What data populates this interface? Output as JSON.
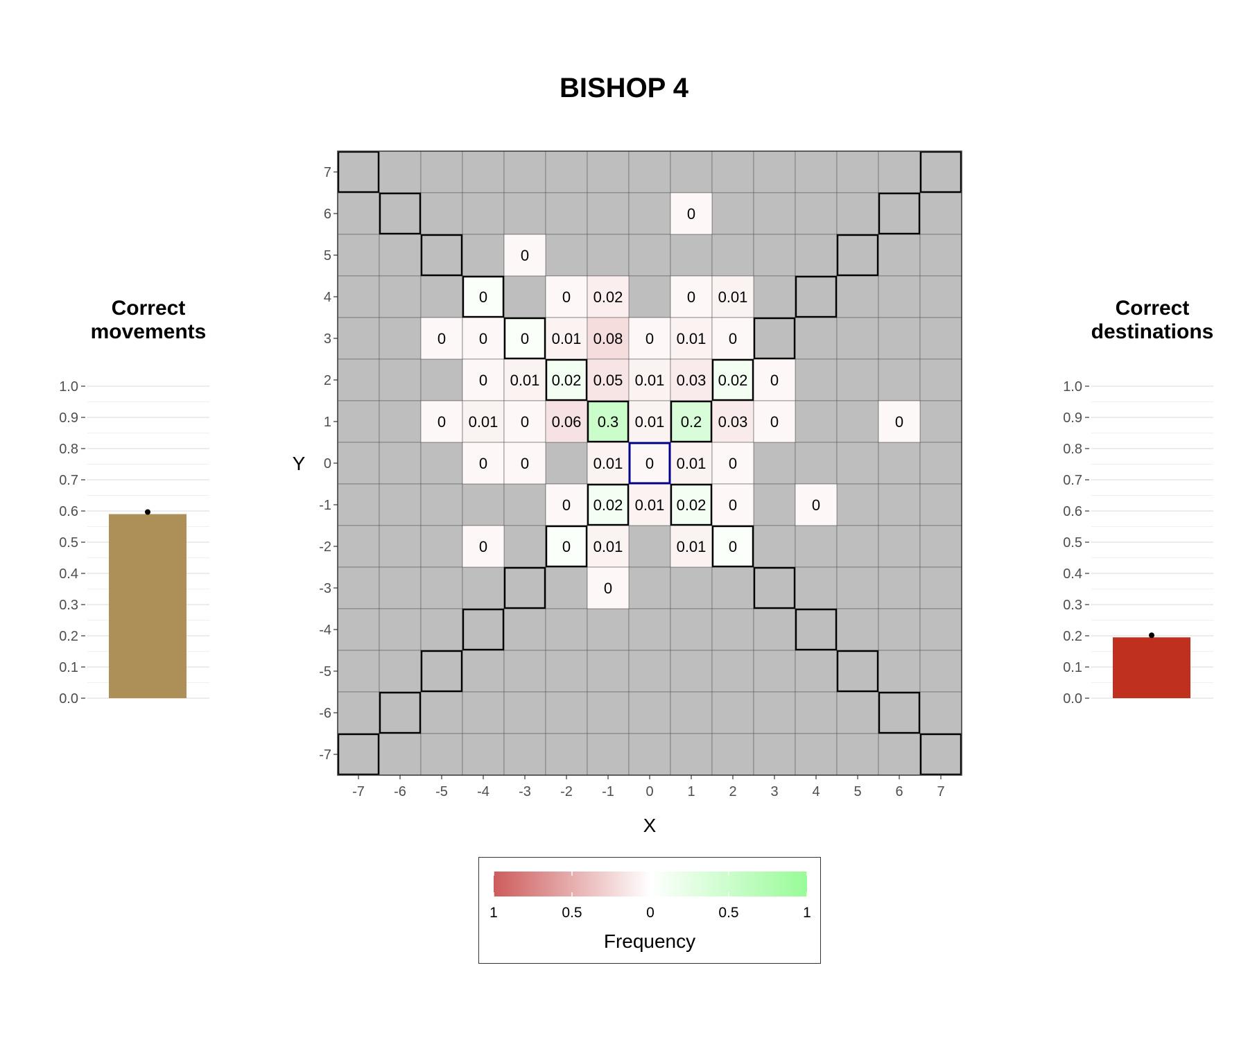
{
  "chart_data": [
    {
      "type": "heatmap",
      "title": "BISHOP 4",
      "xlabel": "X",
      "ylabel": "Y",
      "x_ticks": [
        "-7",
        "-6",
        "-5",
        "-4",
        "-3",
        "-2",
        "-1",
        "0",
        "1",
        "2",
        "3",
        "4",
        "5",
        "6",
        "7"
      ],
      "y_ticks": [
        "7",
        "6",
        "5",
        "4",
        "3",
        "2",
        "1",
        "0",
        "-1",
        "-2",
        "-3",
        "-4",
        "-5",
        "-6",
        "-7"
      ],
      "xlim": [
        -7,
        7
      ],
      "ylim": [
        -7,
        7
      ],
      "origin": [
        0,
        0
      ],
      "cells": [
        {
          "x": 1,
          "y": 6,
          "label": "0",
          "value": 0,
          "sign": -1
        },
        {
          "x": -3,
          "y": 5,
          "label": "0",
          "value": 0,
          "sign": -1
        },
        {
          "x": -4,
          "y": 4,
          "label": "0",
          "value": 0,
          "sign": 1
        },
        {
          "x": -2,
          "y": 4,
          "label": "0",
          "value": 0,
          "sign": -1
        },
        {
          "x": -1,
          "y": 4,
          "label": "0.02",
          "value": 0.02,
          "sign": -1
        },
        {
          "x": 1,
          "y": 4,
          "label": "0",
          "value": 0,
          "sign": -1
        },
        {
          "x": 2,
          "y": 4,
          "label": "0.01",
          "value": 0.01,
          "sign": -1
        },
        {
          "x": -5,
          "y": 3,
          "label": "0",
          "value": 0,
          "sign": -1
        },
        {
          "x": -4,
          "y": 3,
          "label": "0",
          "value": 0,
          "sign": -1
        },
        {
          "x": -3,
          "y": 3,
          "label": "0",
          "value": 0,
          "sign": 1
        },
        {
          "x": -2,
          "y": 3,
          "label": "0.01",
          "value": 0.01,
          "sign": -1
        },
        {
          "x": -1,
          "y": 3,
          "label": "0.08",
          "value": 0.08,
          "sign": -1
        },
        {
          "x": 0,
          "y": 3,
          "label": "0",
          "value": 0,
          "sign": -1
        },
        {
          "x": 1,
          "y": 3,
          "label": "0.01",
          "value": 0.01,
          "sign": -1
        },
        {
          "x": 2,
          "y": 3,
          "label": "0",
          "value": 0,
          "sign": -1
        },
        {
          "x": -4,
          "y": 2,
          "label": "0",
          "value": 0,
          "sign": -1
        },
        {
          "x": -3,
          "y": 2,
          "label": "0.01",
          "value": 0.01,
          "sign": -1
        },
        {
          "x": -2,
          "y": 2,
          "label": "0.02",
          "value": 0.02,
          "sign": 1
        },
        {
          "x": -1,
          "y": 2,
          "label": "0.05",
          "value": 0.05,
          "sign": -1
        },
        {
          "x": 0,
          "y": 2,
          "label": "0.01",
          "value": 0.01,
          "sign": -1
        },
        {
          "x": 1,
          "y": 2,
          "label": "0.03",
          "value": 0.03,
          "sign": -1
        },
        {
          "x": 2,
          "y": 2,
          "label": "0.02",
          "value": 0.02,
          "sign": 1
        },
        {
          "x": 3,
          "y": 2,
          "label": "0",
          "value": 0,
          "sign": -1
        },
        {
          "x": -5,
          "y": 1,
          "label": "0",
          "value": 0,
          "sign": -1
        },
        {
          "x": -4,
          "y": 1,
          "label": "0.01",
          "value": 0.01,
          "sign": -1
        },
        {
          "x": -3,
          "y": 1,
          "label": "0",
          "value": 0,
          "sign": -1
        },
        {
          "x": -2,
          "y": 1,
          "label": "0.06",
          "value": 0.06,
          "sign": -1
        },
        {
          "x": -1,
          "y": 1,
          "label": "0.3",
          "value": 0.3,
          "sign": 1
        },
        {
          "x": 0,
          "y": 1,
          "label": "0.01",
          "value": 0.01,
          "sign": -1
        },
        {
          "x": 1,
          "y": 1,
          "label": "0.2",
          "value": 0.2,
          "sign": 1
        },
        {
          "x": 2,
          "y": 1,
          "label": "0.03",
          "value": 0.03,
          "sign": -1
        },
        {
          "x": 3,
          "y": 1,
          "label": "0",
          "value": 0,
          "sign": -1
        },
        {
          "x": 6,
          "y": 1,
          "label": "0",
          "value": 0,
          "sign": -1
        },
        {
          "x": -4,
          "y": 0,
          "label": "0",
          "value": 0,
          "sign": -1
        },
        {
          "x": -3,
          "y": 0,
          "label": "0",
          "value": 0,
          "sign": -1
        },
        {
          "x": -1,
          "y": 0,
          "label": "0.01",
          "value": 0.01,
          "sign": -1
        },
        {
          "x": 0,
          "y": 0,
          "label": "0",
          "value": 0,
          "sign": -1
        },
        {
          "x": 1,
          "y": 0,
          "label": "0.01",
          "value": 0.01,
          "sign": -1
        },
        {
          "x": 2,
          "y": 0,
          "label": "0",
          "value": 0,
          "sign": -1
        },
        {
          "x": -2,
          "y": -1,
          "label": "0",
          "value": 0,
          "sign": -1
        },
        {
          "x": -1,
          "y": -1,
          "label": "0.02",
          "value": 0.02,
          "sign": 1
        },
        {
          "x": 0,
          "y": -1,
          "label": "0.01",
          "value": 0.01,
          "sign": -1
        },
        {
          "x": 1,
          "y": -1,
          "label": "0.02",
          "value": 0.02,
          "sign": 1
        },
        {
          "x": 2,
          "y": -1,
          "label": "0",
          "value": 0,
          "sign": -1
        },
        {
          "x": 4,
          "y": -1,
          "label": "0",
          "value": 0,
          "sign": -1
        },
        {
          "x": -4,
          "y": -2,
          "label": "0",
          "value": 0,
          "sign": -1
        },
        {
          "x": -2,
          "y": -2,
          "label": "0",
          "value": 0,
          "sign": 1
        },
        {
          "x": -1,
          "y": -2,
          "label": "0.01",
          "value": 0.01,
          "sign": -1
        },
        {
          "x": 1,
          "y": -2,
          "label": "0.01",
          "value": 0.01,
          "sign": -1
        },
        {
          "x": 2,
          "y": -2,
          "label": "0",
          "value": 0,
          "sign": 1
        },
        {
          "x": -1,
          "y": -3,
          "label": "0",
          "value": 0,
          "sign": -1
        }
      ],
      "correct_squares": [
        [
          -7,
          7
        ],
        [
          -6,
          6
        ],
        [
          -5,
          5
        ],
        [
          -4,
          4
        ],
        [
          -3,
          3
        ],
        [
          -2,
          2
        ],
        [
          -1,
          1
        ],
        [
          1,
          1
        ],
        [
          2,
          2
        ],
        [
          3,
          3
        ],
        [
          4,
          4
        ],
        [
          5,
          5
        ],
        [
          6,
          6
        ],
        [
          7,
          7
        ],
        [
          -1,
          -1
        ],
        [
          -2,
          -2
        ],
        [
          -3,
          -3
        ],
        [
          -4,
          -4
        ],
        [
          -5,
          -5
        ],
        [
          -6,
          -6
        ],
        [
          -7,
          -7
        ],
        [
          1,
          -1
        ],
        [
          2,
          -2
        ],
        [
          3,
          -3
        ],
        [
          4,
          -4
        ],
        [
          5,
          -5
        ],
        [
          6,
          -6
        ],
        [
          7,
          -7
        ]
      ],
      "colors": {
        "unvisited": "#bebebe",
        "negative_max": "#cd5c5c",
        "neutral": "#ffffff",
        "positive_max": "#98fb98",
        "origin_border": "#00008b",
        "correct_border": "#000000"
      },
      "legend": {
        "title": "Frequency",
        "tick_labels": [
          "1",
          "0.5",
          "0",
          "0.5",
          "1"
        ],
        "tick_values": [
          -1,
          -0.5,
          0,
          0.5,
          1
        ]
      }
    },
    {
      "type": "bar",
      "title": "Correct\nmovements",
      "categories": [
        ""
      ],
      "values": [
        0.59
      ],
      "ylim": [
        0,
        1
      ],
      "y_ticks": [
        "0.0",
        "0.1",
        "0.2",
        "0.3",
        "0.4",
        "0.5",
        "0.6",
        "0.7",
        "0.8",
        "0.9",
        "1.0"
      ],
      "color": "#ad8f58"
    },
    {
      "type": "bar",
      "title": "Correct\ndestinations",
      "categories": [
        ""
      ],
      "values": [
        0.195
      ],
      "ylim": [
        0,
        1
      ],
      "y_ticks": [
        "0.0",
        "0.1",
        "0.2",
        "0.3",
        "0.4",
        "0.5",
        "0.6",
        "0.7",
        "0.8",
        "0.9",
        "1.0"
      ],
      "color": "#c0301e"
    }
  ],
  "main_title": "BISHOP 4",
  "left_panel": {
    "title_line1": "Correct",
    "title_line2": "movements"
  },
  "right_panel": {
    "title_line1": "Correct",
    "title_line2": "destinations"
  },
  "legend": {
    "title": "Frequency"
  }
}
